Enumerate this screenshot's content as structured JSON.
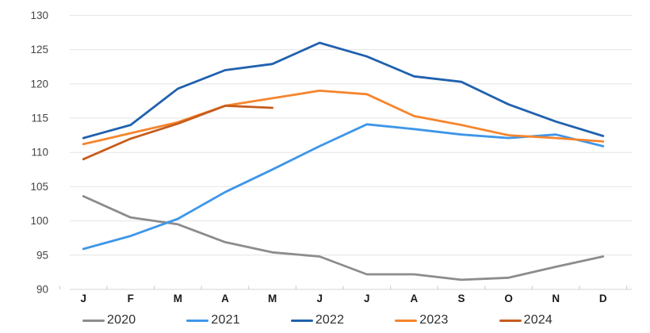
{
  "chart_data": {
    "type": "line",
    "x": [
      "J",
      "F",
      "M",
      "A",
      "M",
      "J",
      "J",
      "A",
      "S",
      "O",
      "N",
      "D"
    ],
    "series": [
      {
        "name": "2020",
        "color": "#8C8C8C",
        "values": [
          103.6,
          100.5,
          99.5,
          96.9,
          95.4,
          94.8,
          92.2,
          92.2,
          91.4,
          91.7,
          93.3,
          94.8
        ]
      },
      {
        "name": "2021",
        "color": "#3E96E8",
        "values": [
          95.9,
          97.8,
          100.3,
          104.2,
          107.5,
          110.9,
          114.1,
          113.4,
          112.6,
          112.1,
          112.6,
          110.9
        ]
      },
      {
        "name": "2022",
        "color": "#2061AE",
        "values": [
          112.1,
          114.0,
          119.3,
          122.0,
          122.9,
          126.0,
          124.0,
          121.1,
          120.3,
          117.0,
          114.5,
          112.4
        ]
      },
      {
        "name": "2023",
        "color": "#F5852D",
        "values": [
          111.2,
          112.8,
          114.4,
          116.8,
          117.9,
          119.0,
          118.5,
          115.3,
          114.0,
          112.5,
          112.1,
          111.6
        ]
      },
      {
        "name": "2024",
        "color": "#C75C1D",
        "values": [
          109.0,
          112.0,
          114.2,
          116.8,
          116.5
        ]
      }
    ],
    "title": "",
    "xlabel": "",
    "ylabel": "",
    "ylim": [
      90,
      130
    ],
    "ytick_step": 5,
    "y_ticks": [
      130,
      125,
      120,
      115,
      110,
      105,
      100,
      95,
      90
    ],
    "grid": true,
    "legend_position": "bottom"
  },
  "legend": {
    "items": [
      {
        "label": "2020",
        "color": "#8C8C8C"
      },
      {
        "label": "2021",
        "color": "#3E96E8"
      },
      {
        "label": "2022",
        "color": "#2061AE"
      },
      {
        "label": "2023",
        "color": "#F5852D"
      },
      {
        "label": "2024",
        "color": "#C75C1D"
      }
    ]
  },
  "style": {
    "gridline_color": "#e4e4e4",
    "baseline_color": "#d4d4d4",
    "tick_color": "#c9c9c9",
    "y_label_color": "#444444",
    "x_label_color": "#1a1a1a"
  }
}
